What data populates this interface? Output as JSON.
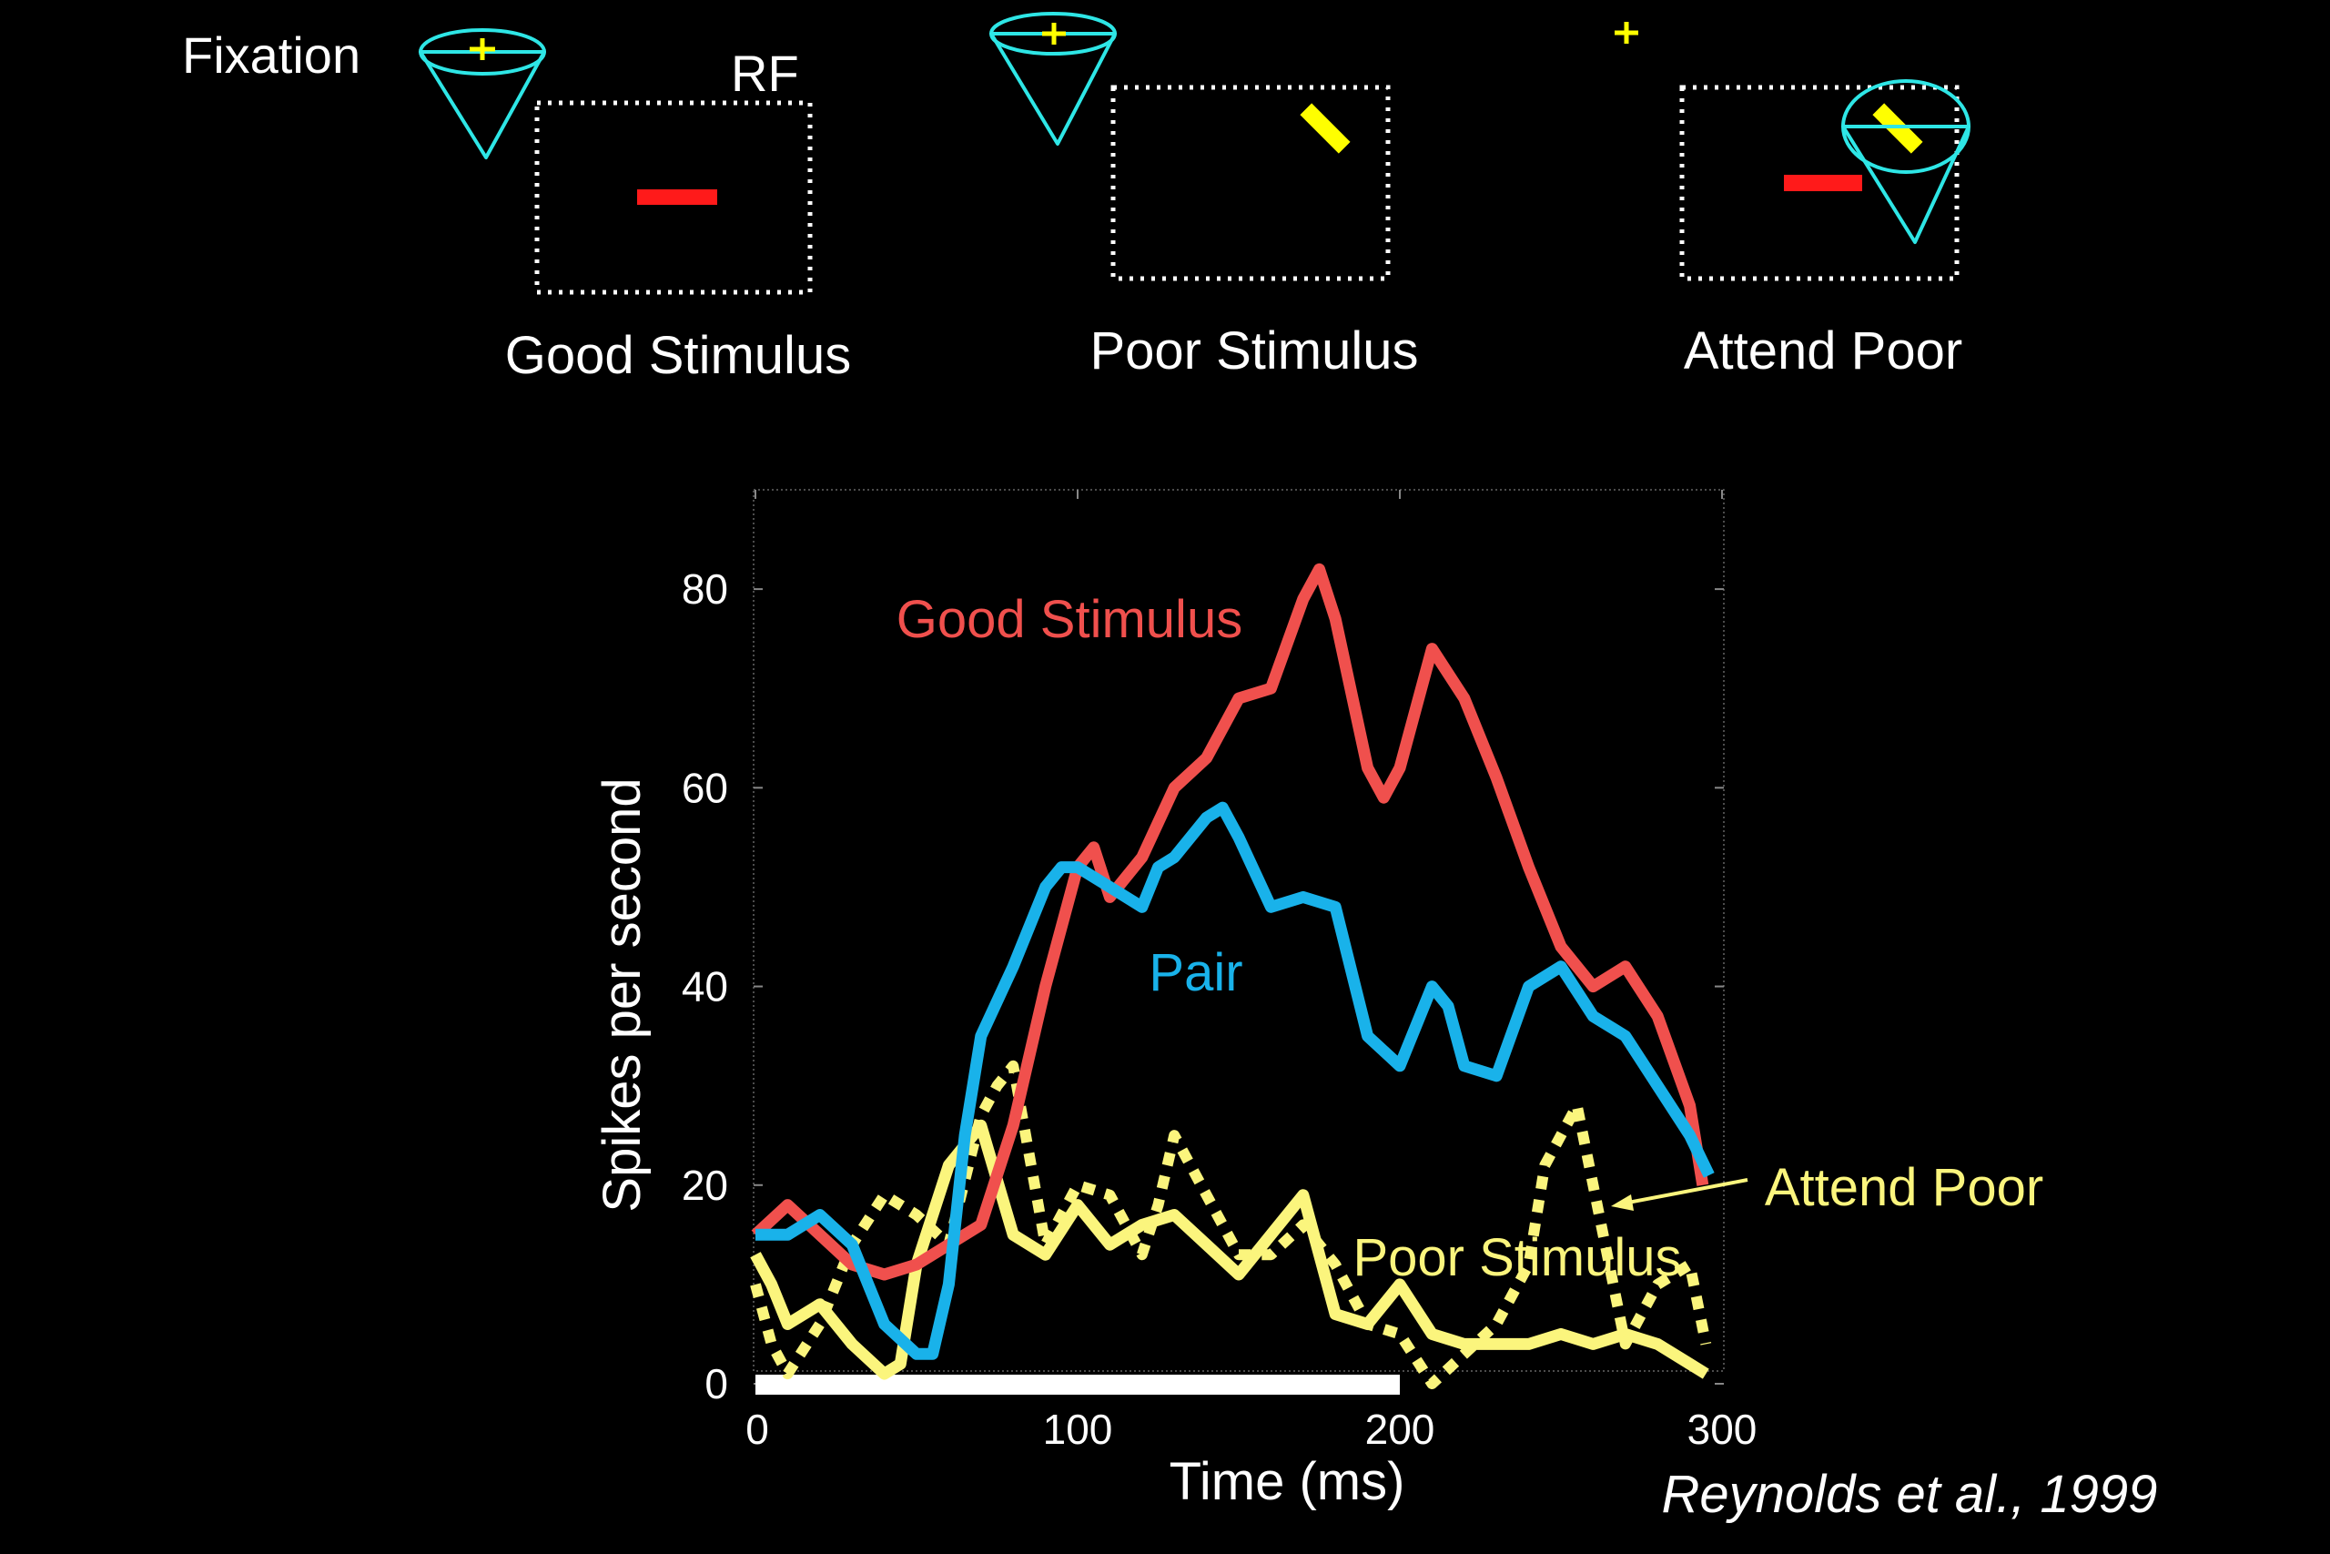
{
  "header": {
    "fixation_label": "Fixation",
    "rf_label": "RF",
    "panels": [
      {
        "label": "Good Stimulus"
      },
      {
        "label": "Poor Stimulus"
      },
      {
        "label": "Attend Poor"
      }
    ]
  },
  "colors": {
    "background": "#000000",
    "good": "#f0504d",
    "pair": "#19b2ea",
    "poor": "#fbf57d",
    "cone": "#2ee6e6",
    "fixation_cross": "#ffff00",
    "bar_red": "#ff1a1a",
    "bar_yellow": "#ffff00",
    "stimulus_bar": "#ffffff"
  },
  "chart_data": {
    "type": "line",
    "xlabel": "Time (ms)",
    "ylabel": "Spikes per second",
    "xlim": [
      0,
      300
    ],
    "ylim": [
      0,
      90
    ],
    "x_ticks": [
      0,
      100,
      200,
      300
    ],
    "y_ticks": [
      0,
      20,
      40,
      60,
      80
    ],
    "stimulus_period": [
      0,
      200
    ],
    "credit": "Reynolds et al., 1999",
    "series": [
      {
        "name": "Good Stimulus",
        "style": "solid",
        "x": [
          0,
          10,
          20,
          30,
          40,
          50,
          60,
          70,
          80,
          90,
          100,
          105,
          110,
          120,
          130,
          140,
          150,
          160,
          170,
          175,
          180,
          190,
          195,
          200,
          210,
          220,
          230,
          240,
          250,
          260,
          270,
          280,
          290,
          294
        ],
        "y": [
          15,
          18,
          15,
          12,
          11,
          12,
          14,
          16,
          26,
          40,
          52,
          54,
          49,
          53,
          60,
          63,
          69,
          70,
          79,
          82,
          77,
          62,
          59,
          62,
          74,
          69,
          61,
          52,
          44,
          40,
          42,
          37,
          28,
          20
        ]
      },
      {
        "name": "Pair",
        "style": "solid",
        "x": [
          0,
          10,
          20,
          30,
          40,
          50,
          55,
          60,
          65,
          70,
          80,
          90,
          95,
          100,
          110,
          120,
          125,
          130,
          140,
          145,
          150,
          160,
          170,
          180,
          190,
          200,
          210,
          215,
          220,
          230,
          240,
          250,
          260,
          270,
          280,
          290,
          296
        ],
        "y": [
          15,
          15,
          17,
          14,
          6,
          3,
          3,
          10,
          25,
          35,
          42,
          50,
          52,
          52,
          50,
          48,
          52,
          53,
          57,
          58,
          55,
          48,
          49,
          48,
          35,
          32,
          40,
          38,
          32,
          31,
          40,
          42,
          37,
          35,
          30,
          25,
          21
        ]
      },
      {
        "name": "Poor Stimulus",
        "style": "solid",
        "x": [
          0,
          5,
          10,
          20,
          30,
          40,
          45,
          50,
          60,
          70,
          80,
          90,
          100,
          110,
          120,
          130,
          140,
          150,
          160,
          170,
          180,
          190,
          200,
          210,
          220,
          230,
          240,
          250,
          260,
          270,
          280,
          290,
          295
        ],
        "y": [
          13,
          10,
          6,
          8,
          4,
          1,
          2,
          12,
          22,
          26,
          15,
          13,
          18,
          14,
          16,
          17,
          14,
          11,
          15,
          19,
          7,
          6,
          10,
          5,
          4,
          4,
          4,
          5,
          4,
          5,
          4,
          2,
          1
        ]
      },
      {
        "name": "Attend Poor",
        "style": "dotted",
        "x": [
          0,
          5,
          10,
          20,
          30,
          40,
          50,
          60,
          70,
          75,
          80,
          90,
          100,
          110,
          120,
          125,
          130,
          140,
          150,
          160,
          170,
          180,
          190,
          200,
          210,
          220,
          230,
          240,
          245,
          250,
          255,
          260,
          265,
          270,
          280,
          290,
          295
        ],
        "y": [
          10,
          4,
          1,
          6,
          14,
          19,
          17,
          14,
          27,
          30,
          32,
          14,
          20,
          19,
          13,
          18,
          25,
          19,
          13,
          13,
          16,
          12,
          6,
          5,
          0,
          3,
          6,
          12,
          22,
          25,
          28,
          20,
          12,
          4,
          10,
          12,
          4
        ]
      }
    ],
    "annotations": [
      {
        "text": "Good Stimulus",
        "series": "Good Stimulus"
      },
      {
        "text": "Pair",
        "series": "Pair"
      },
      {
        "text": "Poor Stimulus",
        "series": "Poor Stimulus"
      },
      {
        "text": "Attend Poor",
        "series": "Attend Poor"
      }
    ]
  }
}
